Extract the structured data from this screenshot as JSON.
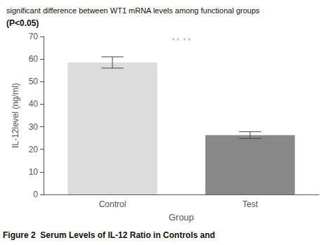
{
  "chart_data": {
    "type": "bar",
    "title": "significant difference between WT1 mRNA levels among functional groups",
    "subtitle": "(P<0.05)",
    "caption": "Figure 2  Serum Levels of IL-12 Ratio in Controls and",
    "categories": [
      "Control",
      "Test"
    ],
    "values": [
      58.5,
      26.3
    ],
    "errors": [
      2.5,
      1.5
    ],
    "colors": [
      "#dcdcdc",
      "#888888"
    ],
    "xlabel": "Group",
    "ylabel": "IL-12level (ng/ml)",
    "ylim": [
      0,
      70
    ],
    "yticks": [
      0,
      10,
      20,
      30,
      40,
      50,
      60,
      70
    ],
    "annotations": [
      {
        "text": "* *  * *",
        "x": 0.5,
        "y": 66.5
      }
    ],
    "grid": false
  }
}
